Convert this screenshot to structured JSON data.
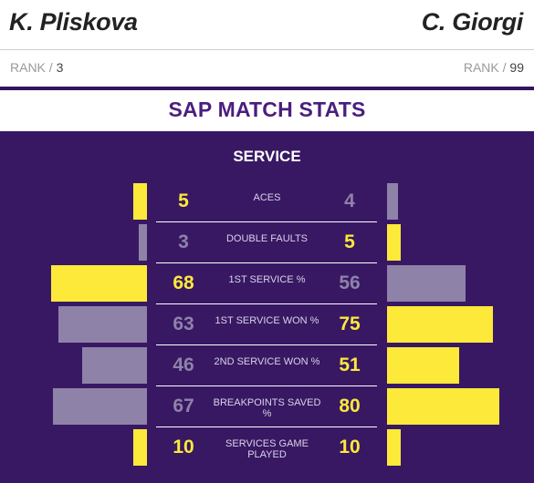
{
  "header": {
    "player_left": "K. Pliskova",
    "player_right": "C. Giorgi"
  },
  "ranks": {
    "left_label": "RANK / ",
    "left_value": "3",
    "right_label": "RANK / ",
    "right_value": "99"
  },
  "title": "SAP MATCH STATS",
  "section": "SERVICE",
  "colors": {
    "highlight": "#fce93a",
    "muted": "#8e82a9",
    "panel": "#381863",
    "title": "#4b1e7e"
  },
  "stats": [
    {
      "label": "ACES",
      "left": "5",
      "right": "4",
      "left_fraction": 0.1,
      "right_fraction": 0.08,
      "leader": "left"
    },
    {
      "label": "DOUBLE FAULTS",
      "left": "3",
      "right": "5",
      "left_fraction": 0.06,
      "right_fraction": 0.1,
      "leader": "right"
    },
    {
      "label": "1ST SERVICE %",
      "left": "68",
      "right": "56",
      "left_fraction": 0.68,
      "right_fraction": 0.56,
      "leader": "left"
    },
    {
      "label": "1ST SERVICE WON %",
      "left": "63",
      "right": "75",
      "left_fraction": 0.63,
      "right_fraction": 0.75,
      "leader": "right"
    },
    {
      "label": "2ND SERVICE WON %",
      "left": "46",
      "right": "51",
      "left_fraction": 0.46,
      "right_fraction": 0.51,
      "leader": "right"
    },
    {
      "label": "BREAKPOINTS SAVED %",
      "left": "67",
      "right": "80",
      "left_fraction": 0.67,
      "right_fraction": 0.8,
      "leader": "right"
    },
    {
      "label": "SERVICES GAME PLAYED",
      "left": "10",
      "right": "10",
      "left_fraction": 0.1,
      "right_fraction": 0.1,
      "leader": "both"
    }
  ]
}
